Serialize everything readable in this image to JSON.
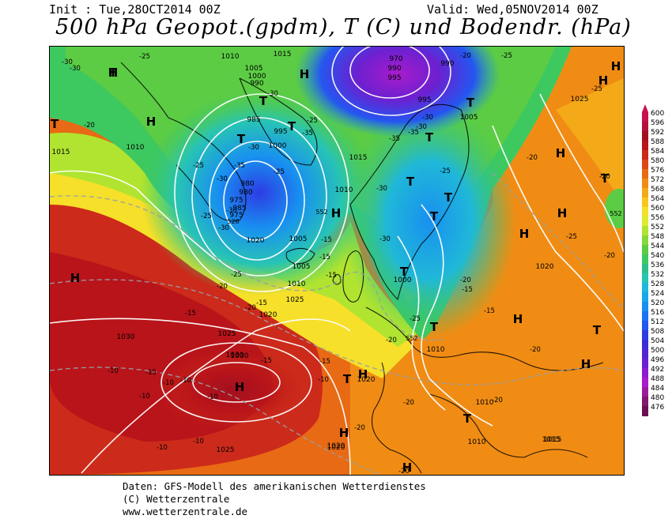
{
  "header": {
    "init": "Init : Tue,28OCT2014 00Z",
    "valid": "Valid: Wed,05NOV2014 00Z",
    "title": "500 hPa Geopot.(gpdm), T (C) und Bodendr. (hPa)"
  },
  "legend": {
    "values": [
      "600",
      "596",
      "592",
      "588",
      "584",
      "580",
      "576",
      "572",
      "568",
      "564",
      "560",
      "556",
      "552",
      "548",
      "544",
      "540",
      "536",
      "532",
      "528",
      "524",
      "520",
      "516",
      "512",
      "508",
      "504",
      "500",
      "496",
      "492",
      "488",
      "484",
      "480",
      "476"
    ],
    "colors": [
      "#c8104e",
      "#b5103c",
      "#a3101f",
      "#b8141a",
      "#cc2a1a",
      "#dc4818",
      "#e86a14",
      "#f08c14",
      "#f4aa18",
      "#f8c61e",
      "#f6e02a",
      "#dcec2e",
      "#b0e430",
      "#86d838",
      "#5ccc44",
      "#3ec860",
      "#2ec08a",
      "#28c4b4",
      "#20b8d8",
      "#18a8e8",
      "#1890f0",
      "#1c74f4",
      "#2456f0",
      "#2c3ce4",
      "#3c2cd8",
      "#5424d4",
      "#6c20d0",
      "#8c1cd0",
      "#a81ccc",
      "#981c9c",
      "#801870",
      "#6a1050"
    ]
  },
  "map": {
    "pressure_labels": [
      "1010",
      "1015",
      "1005",
      "1000",
      "990",
      "985",
      "980",
      "975",
      "970",
      "995",
      "1020",
      "1025",
      "1030",
      "1010",
      "1015",
      "1000",
      "1005",
      "1010",
      "1020",
      "1025",
      "1015",
      "1010",
      "1005",
      "1030",
      "1025",
      "1020",
      "985",
      "990",
      "995",
      "980",
      "975",
      "990",
      "995",
      "1000",
      "1005",
      "1010",
      "1015",
      "1020",
      "1025",
      "1010",
      "1010",
      "1015",
      "1020",
      "1030",
      "1020"
    ],
    "temp_labels": [
      "-25",
      "-30",
      "-20",
      "-30",
      "-25",
      "-35",
      "-30",
      "-30",
      "-25",
      "-30",
      "-30",
      "-25",
      "-30",
      "-25",
      "-35",
      "-30",
      "-30",
      "-35",
      "-30",
      "-35",
      "-30",
      "-25",
      "-20",
      "-25",
      "-20",
      "-15",
      "-15",
      "-15",
      "-15",
      "-20",
      "-15",
      "-20",
      "-15",
      "-20",
      "-25",
      "-20",
      "-20",
      "-15",
      "-15",
      "-10",
      "-10",
      "-10",
      "-10",
      "-10",
      "-10",
      "-10",
      "-15",
      "-10",
      "-15",
      "-20",
      "-20",
      "-20",
      "-25",
      "-20",
      "-25",
      "-20",
      "-25",
      "-20"
    ],
    "gpdm_labels": [
      "552",
      "528",
      "552",
      "552"
    ],
    "highs": [
      "H",
      "H",
      "H",
      "H",
      "H",
      "H",
      "H",
      "H",
      "H",
      "H",
      "H",
      "H",
      "H",
      "H",
      "H",
      "H"
    ],
    "lows": [
      "T",
      "T",
      "T",
      "T",
      "T",
      "T",
      "T",
      "T",
      "T",
      "T",
      "T",
      "T",
      "T",
      "T",
      "T",
      "T"
    ]
  },
  "footer": {
    "line1": "Daten: GFS-Modell des amerikanischen Wetterdienstes",
    "line2": "(C) Wetterzentrale",
    "line3": "www.wetterzentrale.de"
  }
}
